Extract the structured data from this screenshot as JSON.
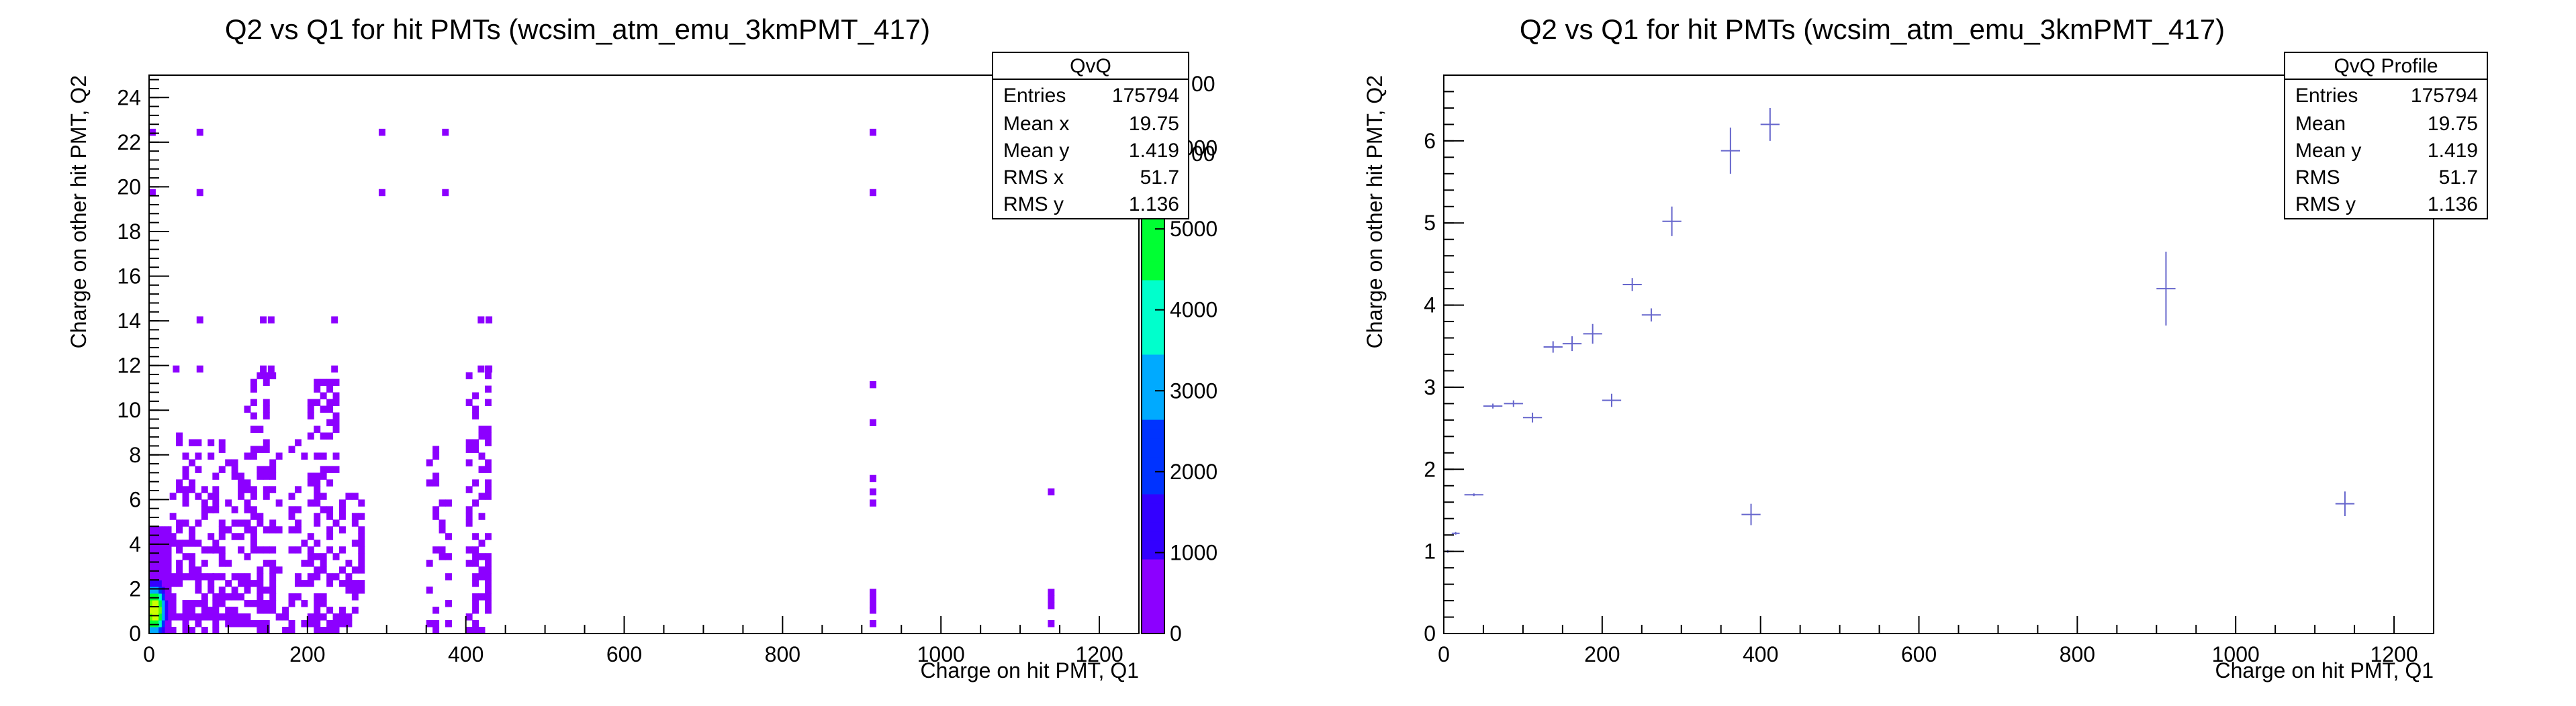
{
  "chart_data": [
    {
      "type": "heatmap",
      "title": "Q2 vs Q1 for hit PMTs (wcsim_atm_emu_3kmPMT_417)",
      "xlabel": "Charge on hit PMT, Q1",
      "ylabel": "Charge on other hit PMT, Q2",
      "xlim": [
        0,
        1250
      ],
      "ylim": [
        0,
        25
      ],
      "x_ticks": [
        0,
        200,
        400,
        600,
        800,
        1000,
        1200
      ],
      "y_ticks": [
        0,
        2,
        4,
        6,
        8,
        10,
        12,
        14,
        16,
        18,
        20,
        22,
        24
      ],
      "colorbar": {
        "range": [
          0,
          6900
        ],
        "ticks": [
          0,
          1000,
          2000,
          3000,
          4000,
          5000,
          6000
        ],
        "hidden_tick_fragments": [
          "00",
          "00"
        ],
        "colors": [
          "#8c00ff",
          "#3300ff",
          "#0033ff",
          "#00aaff",
          "#00ffcc",
          "#00ff33",
          "#66ff00",
          "#ccff00"
        ]
      },
      "stats_box": {
        "title": "QvQ",
        "rows": [
          {
            "label": "Entries",
            "value": "175794"
          },
          {
            "label": "Mean x",
            "value": "19.75"
          },
          {
            "label": "Mean y",
            "value": "1.419"
          },
          {
            "label": "RMS x",
            "value": "51.7"
          },
          {
            "label": "RMS y",
            "value": "1.136"
          }
        ]
      },
      "bins": {
        "bin_x": 8,
        "bin_y": 0.3,
        "dense_block": {
          "x": [
            0,
            26
          ],
          "y": [
            0,
            4.6
          ],
          "peak": [
            5,
            0.9
          ],
          "peak_value": 6400
        },
        "column_bands": [
          {
            "x": [
              26,
              80
            ],
            "y": [
              0,
              9.0
            ],
            "density": 0.6
          },
          {
            "x": [
              80,
              120
            ],
            "y": [
              0,
              8.5
            ],
            "density": 0.55
          },
          {
            "x": [
              120,
              160
            ],
            "y": [
              0,
              11.5
            ],
            "density": 0.6
          },
          {
            "x": [
              160,
              200
            ],
            "y": [
              0,
              8.5
            ],
            "density": 0.45
          },
          {
            "x": [
              200,
              240
            ],
            "y": [
              0,
              11.5
            ],
            "density": 0.55
          },
          {
            "x": [
              240,
              270
            ],
            "y": [
              0,
              7.0
            ],
            "density": 0.4
          },
          {
            "x": [
              350,
              380
            ],
            "y": [
              0,
              8.5
            ],
            "density": 0.45
          },
          {
            "x": [
              400,
              430
            ],
            "y": [
              0,
              12.0
            ],
            "density": 0.5
          }
        ],
        "points": [
          [
            0,
            22.3
          ],
          [
            60,
            22.3
          ],
          [
            290,
            22.3
          ],
          [
            370,
            22.3
          ],
          [
            910,
            22.3
          ],
          [
            0,
            19.6
          ],
          [
            60,
            19.6
          ],
          [
            290,
            19.6
          ],
          [
            370,
            19.6
          ],
          [
            910,
            19.6
          ],
          [
            60,
            13.9
          ],
          [
            140,
            13.9
          ],
          [
            150,
            13.9
          ],
          [
            230,
            13.9
          ],
          [
            415,
            13.9
          ],
          [
            425,
            13.9
          ],
          [
            30,
            11.7
          ],
          [
            60,
            11.7
          ],
          [
            140,
            11.7
          ],
          [
            150,
            11.7
          ],
          [
            230,
            11.7
          ],
          [
            415,
            11.7
          ],
          [
            425,
            11.7
          ],
          [
            910,
            11.0
          ],
          [
            910,
            9.3
          ],
          [
            910,
            6.8
          ],
          [
            910,
            6.2
          ],
          [
            910,
            5.7
          ],
          [
            1135,
            6.2
          ],
          [
            910,
            1.7
          ],
          [
            910,
            1.4
          ],
          [
            910,
            1.1
          ],
          [
            910,
            0.9
          ],
          [
            1135,
            1.7
          ],
          [
            1135,
            1.4
          ],
          [
            1135,
            1.1
          ],
          [
            1135,
            0.3
          ],
          [
            910,
            0.3
          ]
        ]
      }
    },
    {
      "type": "scatter",
      "title": "Q2 vs Q1 for hit PMTs (wcsim_atm_emu_3kmPMT_417)",
      "xlabel": "Charge on hit PMT, Q1",
      "ylabel": "Charge on other hit PMT, Q2",
      "xlim": [
        0,
        1250
      ],
      "ylim": [
        0,
        6.8
      ],
      "x_ticks": [
        0,
        200,
        400,
        600,
        800,
        1000,
        1200
      ],
      "y_ticks": [
        0,
        1,
        2,
        3,
        4,
        5,
        6
      ],
      "marker_color": "#6666cc",
      "stats_box": {
        "title": "QvQ Profile",
        "rows": [
          {
            "label": "Entries",
            "value": "175794"
          },
          {
            "label": "Mean",
            "value": "19.75"
          },
          {
            "label": "Mean y",
            "value": "1.419"
          },
          {
            "label": "RMS",
            "value": "51.7"
          },
          {
            "label": "RMS y",
            "value": "1.136"
          }
        ]
      },
      "points": [
        {
          "x": 5,
          "y": 1.0,
          "xerr": 5,
          "yerr": 0.01
        },
        {
          "x": 15,
          "y": 1.22,
          "xerr": 5,
          "yerr": 0.01
        },
        {
          "x": 38,
          "y": 1.69,
          "xerr": 12,
          "yerr": 0.01
        },
        {
          "x": 62,
          "y": 2.77,
          "xerr": 12,
          "yerr": 0.03
        },
        {
          "x": 88,
          "y": 2.8,
          "xerr": 12,
          "yerr": 0.04
        },
        {
          "x": 112,
          "y": 2.63,
          "xerr": 12,
          "yerr": 0.06
        },
        {
          "x": 138,
          "y": 3.49,
          "xerr": 12,
          "yerr": 0.07
        },
        {
          "x": 162,
          "y": 3.53,
          "xerr": 12,
          "yerr": 0.09
        },
        {
          "x": 188,
          "y": 3.65,
          "xerr": 12,
          "yerr": 0.12
        },
        {
          "x": 212,
          "y": 2.84,
          "xerr": 12,
          "yerr": 0.08
        },
        {
          "x": 238,
          "y": 4.25,
          "xerr": 12,
          "yerr": 0.08
        },
        {
          "x": 262,
          "y": 3.88,
          "xerr": 12,
          "yerr": 0.08
        },
        {
          "x": 288,
          "y": 5.02,
          "xerr": 12,
          "yerr": 0.18
        },
        {
          "x": 362,
          "y": 5.88,
          "xerr": 12,
          "yerr": 0.28
        },
        {
          "x": 388,
          "y": 1.45,
          "xerr": 12,
          "yerr": 0.13
        },
        {
          "x": 412,
          "y": 6.2,
          "xerr": 12,
          "yerr": 0.2
        },
        {
          "x": 912,
          "y": 4.2,
          "xerr": 12,
          "yerr": 0.45
        },
        {
          "x": 1138,
          "y": 1.58,
          "xerr": 12,
          "yerr": 0.15
        }
      ]
    }
  ]
}
